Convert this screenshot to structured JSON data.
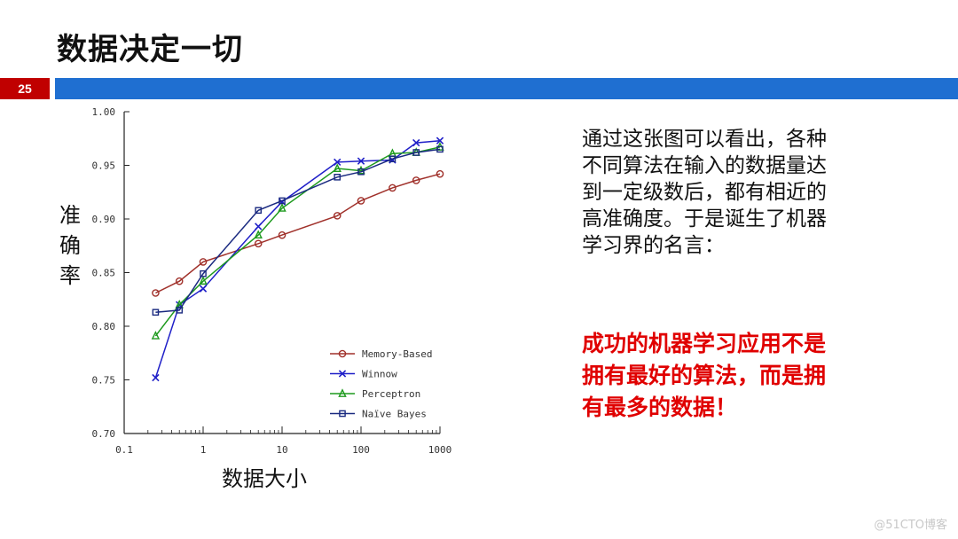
{
  "slide": {
    "title": "数据决定一切",
    "page_number": "25"
  },
  "text_panel": {
    "description": "通过这张图可以看出，各种不同算法在输入的数据量达到一定级数后，都有相近的高准确度。于是诞生了机器学习界的名言：",
    "highlight": "成功的机器学习应用不是拥有最好的算法，而是拥有最多的数据！"
  },
  "watermark": "@51CTO博客",
  "colors": {
    "header_bar": "#1f6fd1",
    "page_badge": "#c00000",
    "highlight": "#e00000"
  },
  "chart_data": {
    "type": "line",
    "xlabel": "数据大小",
    "ylabel": "准确率",
    "xscale": "log",
    "xlim": [
      0.1,
      1000
    ],
    "ylim": [
      0.7,
      1.0
    ],
    "x_ticks": [
      {
        "value": 0.1,
        "label": "0.1"
      },
      {
        "value": 1,
        "label": "1"
      },
      {
        "value": 10,
        "label": "10"
      },
      {
        "value": 100,
        "label": "100"
      },
      {
        "value": 1000,
        "label": "1000"
      }
    ],
    "y_ticks": [
      {
        "value": 0.7,
        "label": "0.70"
      },
      {
        "value": 0.75,
        "label": "0.75"
      },
      {
        "value": 0.8,
        "label": "0.80"
      },
      {
        "value": 0.85,
        "label": "0.85"
      },
      {
        "value": 0.9,
        "label": "0.90"
      },
      {
        "value": 0.95,
        "label": "0.95"
      },
      {
        "value": 1.0,
        "label": "1.00"
      }
    ],
    "grid": false,
    "legend_position": "bottom-right",
    "series": [
      {
        "name": "Memory-Based",
        "color": "#a0302a",
        "marker": "circle",
        "x": [
          0.25,
          0.5,
          1,
          5,
          10,
          50,
          100,
          250,
          500,
          1000
        ],
        "y": [
          0.831,
          0.842,
          0.86,
          0.877,
          0.885,
          0.903,
          0.917,
          0.929,
          0.936,
          0.942
        ]
      },
      {
        "name": "Winnow",
        "color": "#1f1fc8",
        "marker": "x",
        "x": [
          0.25,
          0.5,
          1,
          5,
          10,
          50,
          100,
          250,
          500,
          1000
        ],
        "y": [
          0.752,
          0.82,
          0.835,
          0.893,
          0.916,
          0.953,
          0.954,
          0.955,
          0.971,
          0.973
        ]
      },
      {
        "name": "Perceptron",
        "color": "#1e9a1e",
        "marker": "triangle",
        "x": [
          0.25,
          0.5,
          1,
          5,
          10,
          50,
          100,
          250,
          500,
          1000
        ],
        "y": [
          0.791,
          0.82,
          0.842,
          0.885,
          0.91,
          0.947,
          0.945,
          0.961,
          0.962,
          0.967
        ]
      },
      {
        "name": "Naïve Bayes",
        "color": "#1a2a80",
        "marker": "square",
        "x": [
          0.25,
          0.5,
          1,
          5,
          10,
          50,
          100,
          250,
          500,
          1000
        ],
        "y": [
          0.813,
          0.815,
          0.849,
          0.908,
          0.917,
          0.939,
          0.944,
          0.956,
          0.962,
          0.965
        ]
      }
    ]
  }
}
